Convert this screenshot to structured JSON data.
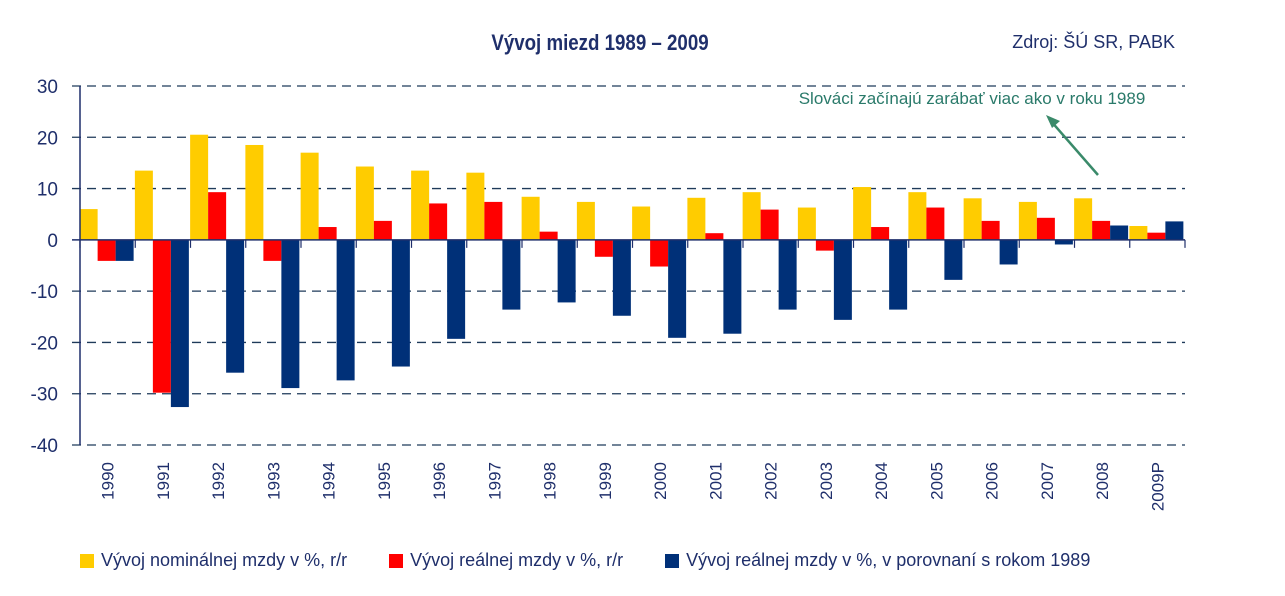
{
  "chart_data": {
    "type": "bar",
    "title": "Vývoj miezd 1989 – 2009",
    "source": "Zdroj: ŠÚ SR, PABK",
    "annotation": "Slováci začínajú zarábať viac ako v roku 1989",
    "xlabel": "",
    "ylabel": "",
    "ylim": [
      -40,
      30
    ],
    "yticks": [
      30,
      20,
      10,
      0,
      -10,
      -20,
      -30,
      -40
    ],
    "grid": true,
    "legend_position": "bottom",
    "categories": [
      "1990",
      "1991",
      "1992",
      "1993",
      "1994",
      "1995",
      "1996",
      "1997",
      "1998",
      "1999",
      "2000",
      "2001",
      "2002",
      "2003",
      "2004",
      "2005",
      "2006",
      "2007",
      "2008",
      "2009P"
    ],
    "series": [
      {
        "name": "Vývoj nominálnej mzdy v %, r/r",
        "color": "#ffcc00",
        "values": [
          6.0,
          13.5,
          20.5,
          18.5,
          17.0,
          14.3,
          13.5,
          13.1,
          8.4,
          7.4,
          6.5,
          8.2,
          9.3,
          6.3,
          10.3,
          9.3,
          8.1,
          7.4,
          8.1,
          2.7
        ]
      },
      {
        "name": "Vývoj reálnej mzdy v %, r/r",
        "color": "#ff0000",
        "values": [
          -4.1,
          -29.8,
          9.3,
          -4.1,
          2.5,
          3.7,
          7.1,
          7.4,
          1.6,
          -3.3,
          -5.2,
          1.3,
          5.9,
          -2.1,
          2.5,
          6.3,
          3.7,
          4.3,
          3.7,
          1.4
        ]
      },
      {
        "name": "Vývoj reálnej mzdy v %, v porovnaní s rokom 1989",
        "color": "#003078",
        "values": [
          -4.1,
          -32.6,
          -25.9,
          -28.9,
          -27.4,
          -24.7,
          -19.3,
          -13.6,
          -12.2,
          -14.8,
          -19.1,
          -18.3,
          -13.6,
          -15.6,
          -13.6,
          -7.8,
          -4.8,
          -0.9,
          2.8,
          3.6
        ]
      }
    ],
    "colors": {
      "axis": "#1f2f6b",
      "grid": "#1f3a5a",
      "annotation": "#2a7a6a",
      "arrow": "#3a8a6a"
    }
  }
}
